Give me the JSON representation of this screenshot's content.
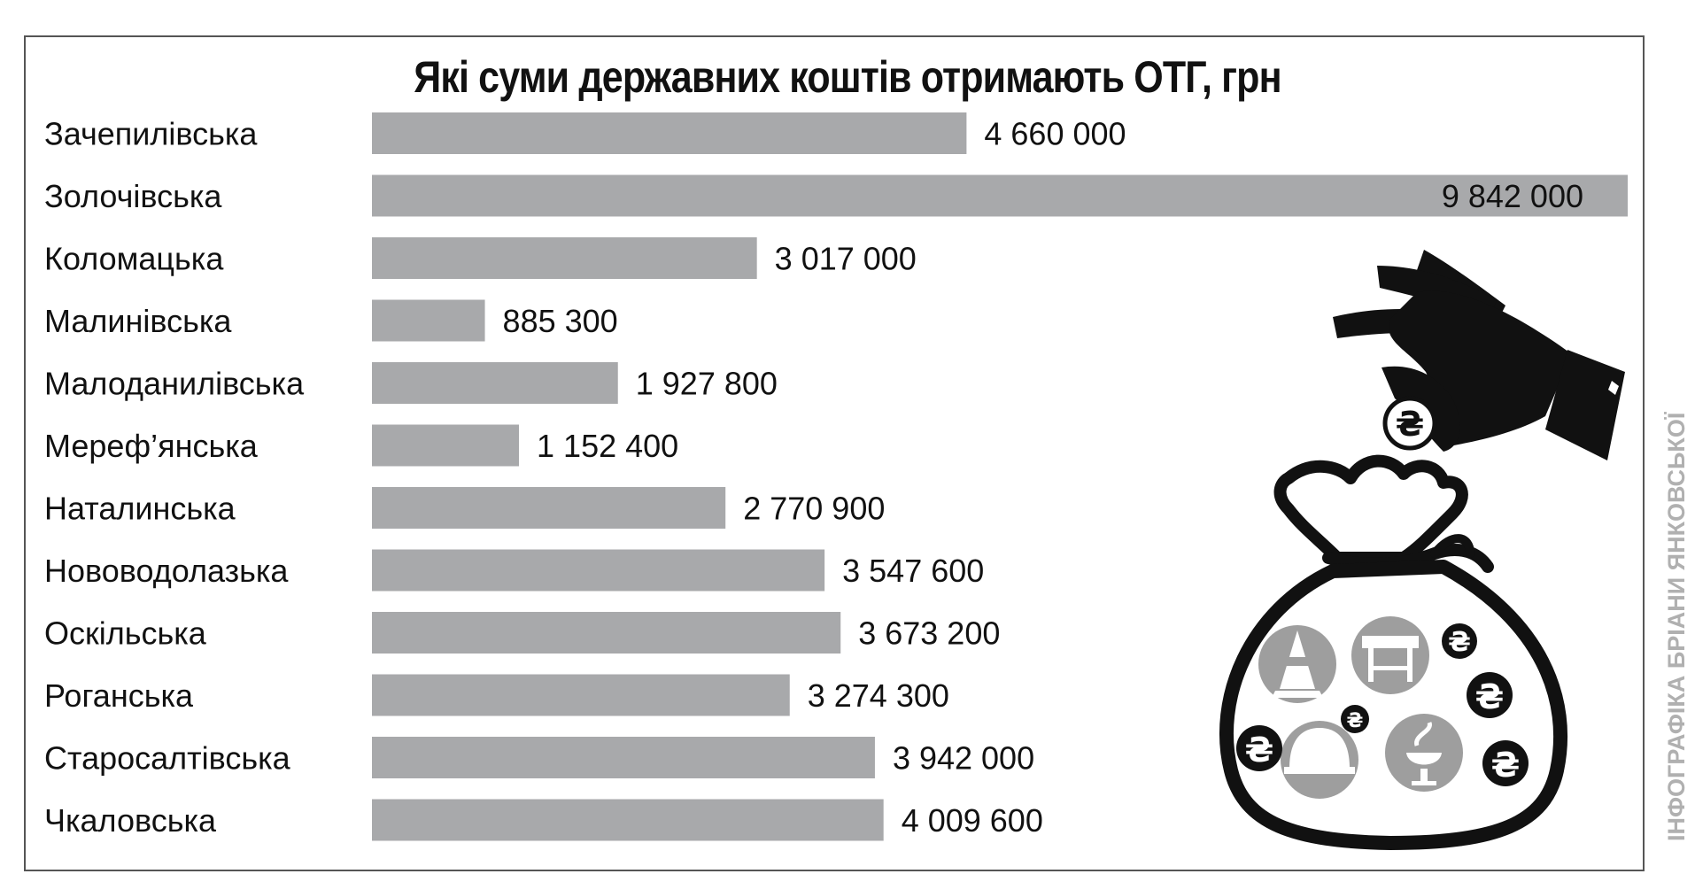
{
  "title": "Які суми державних коштів отримають ОТГ, грн",
  "credit": "ІНФОГРАФІКА БРІАНИ ЯНКОВСЬКОЇ",
  "colors": {
    "bar": "#a8a9ab",
    "text": "#111111",
    "frame": "#555555",
    "credit": "#b0b0b0",
    "icon": "#111111",
    "icon_fill": "#9e9e9e"
  },
  "icons": [
    "hand-dropping-coin-icon",
    "money-bag-icon",
    "hryvnia-coin-icon",
    "traffic-cone-icon",
    "road-barrier-icon",
    "hard-hat-icon",
    "medical-snake-bowl-icon"
  ],
  "chart_data": {
    "type": "bar",
    "orientation": "horizontal",
    "title": "Які суми державних коштів отримають ОТГ, грн",
    "categories": [
      "Зачепилівська",
      "Золочівська",
      "Коломацька",
      "Малинівська",
      "Малоданилівська",
      "Мереф’янська",
      "Наталинська",
      "Нововодолазька",
      "Оскільська",
      "Роганська",
      "Старосалтівська",
      "Чкаловська"
    ],
    "values": [
      4660000,
      9842000,
      3017000,
      885300,
      1927800,
      1152400,
      2770900,
      3547600,
      3673200,
      3274300,
      3942000,
      4009600
    ],
    "labels": [
      "4 660 000",
      "9 842 000",
      "3 017 000",
      "885 300",
      "1 927 800",
      "1 152 400",
      "2 770 900",
      "3 547 600",
      "3 673 200",
      "3 274 300",
      "3 942 000",
      "4 009 600"
    ],
    "xlim": [
      0,
      9842000
    ],
    "grid": false,
    "legend": "none"
  }
}
